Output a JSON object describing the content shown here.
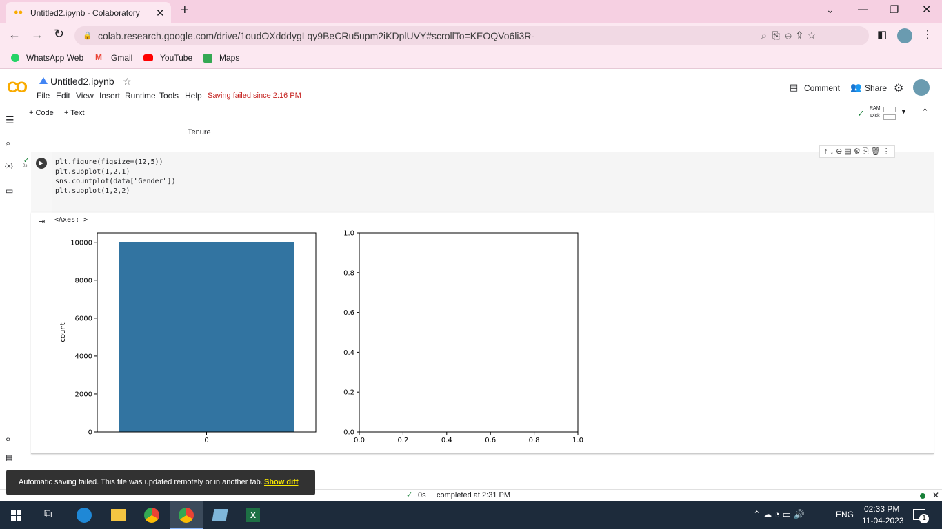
{
  "browser": {
    "tab_title": "Untitled2.ipynb - Colaboratory",
    "url": "colab.research.google.com/drive/1oudOXdddygLqy9BeCRu5upm2iKDplUVY#scrollTo=KEOQVo6li3R-",
    "bookmarks": [
      "WhatsApp Web",
      "Gmail",
      "YouTube",
      "Maps"
    ]
  },
  "notebook": {
    "name": "Untitled2.ipynb",
    "menu": [
      "File",
      "Edit",
      "View",
      "Insert",
      "Runtime",
      "Tools",
      "Help"
    ],
    "save_status": "Saving failed since 2:16 PM",
    "header_actions": [
      "Comment",
      "Share"
    ],
    "toolbar": [
      "Code",
      "Text"
    ],
    "resources": [
      "RAM",
      "Disk"
    ],
    "previous_output_label": "Tenure"
  },
  "cell": {
    "exec_time": "0s",
    "code": [
      "plt.figure(figsize=(12,5))",
      "plt.subplot(1,2,1)",
      "sns.countplot(data[\"Gender\"])",
      "plt.subplot(1,2,2)"
    ],
    "output_text": "<Axes: >",
    "plots": [
      {
        "type": "bar",
        "ylabel": "count",
        "categories": [
          "0"
        ],
        "values": [
          10000
        ],
        "color": "#3274a1",
        "ylim": [
          0,
          10500
        ],
        "yticks": [
          0,
          2000,
          4000,
          6000,
          8000,
          10000
        ]
      },
      {
        "type": "empty",
        "xlim": [
          0,
          1
        ],
        "ylim": [
          0,
          1
        ],
        "xticks": [
          {
            "value": 0,
            "label": "0.0"
          },
          0.2,
          0.4,
          0.6,
          0.8,
          {
            "value": 1,
            "label": "1.0"
          }
        ],
        "yticks": [
          {
            "value": 0,
            "label": "0.0"
          },
          0.2,
          0.4,
          0.6,
          0.8,
          {
            "value": 1,
            "label": "1.0"
          }
        ]
      }
    ]
  },
  "toast": {
    "message": "Automatic saving failed. This file was updated remotely or in another tab.",
    "action": "Show diff"
  },
  "status_bar": {
    "time": "0s",
    "message": "completed at 2:31 PM"
  },
  "taskbar": {
    "language": "ENG",
    "time": "02:33 PM",
    "date": "11-04-2023",
    "notifications": 1
  }
}
